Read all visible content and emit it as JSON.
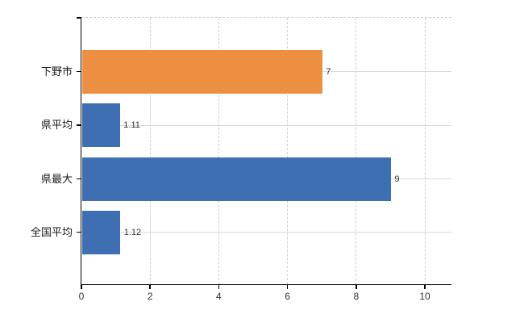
{
  "chart_data": {
    "type": "bar",
    "orientation": "horizontal",
    "title": "",
    "xlabel": "",
    "ylabel": "",
    "categories": [
      "下野市",
      "県平均",
      "県最大",
      "全国平均"
    ],
    "values": [
      7,
      1.11,
      9,
      1.12
    ],
    "value_labels": [
      "7",
      "1.11",
      "9",
      "1.12"
    ],
    "bar_colors": [
      "#EC8F41",
      "#3D6FB2",
      "#3D6FB2",
      "#3D6FB2"
    ],
    "x_ticks": [
      0,
      2,
      4,
      6,
      8,
      10
    ],
    "xlim": [
      0,
      10.77
    ],
    "grid": true,
    "legend_position": "none",
    "colors": {
      "orange": "#EC8F41",
      "blue": "#3D6FB2",
      "gridline_solid": "#d9d9d9",
      "gridline_dashed": "#cfcfcf",
      "axis": "#000000",
      "category_text": "#1a1a1a",
      "value_text": "#333333",
      "tick_text": "#333333",
      "background": "#ffffff"
    }
  }
}
